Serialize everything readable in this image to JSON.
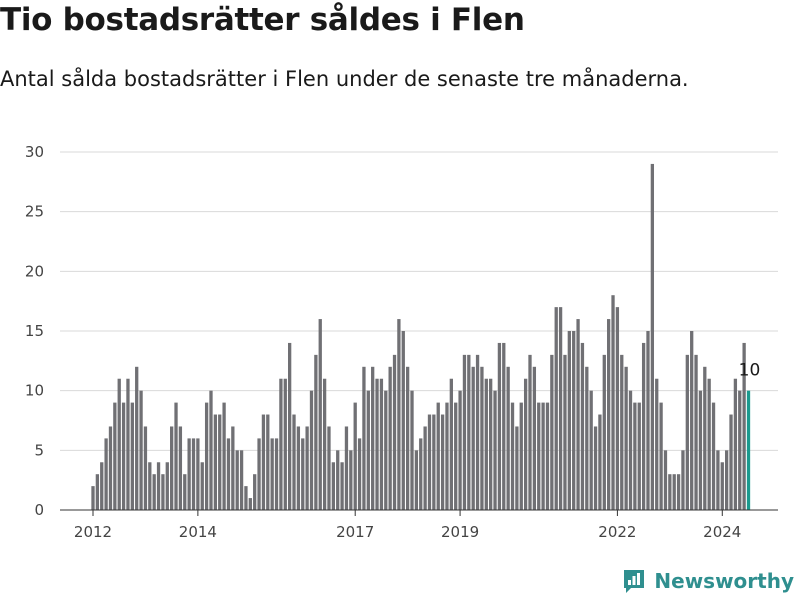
{
  "title": "Tio bostadsrätter såldes i Flen",
  "subtitle": "Antal sålda bostadsrätter i Flen under de senaste tre månaderna.",
  "brand": {
    "name": "Newsworthy",
    "color": "#2f8f8f"
  },
  "colors": {
    "bar": "#707074",
    "highlight": "#1a9a8e",
    "grid": "#d9d9d9"
  },
  "chart_data": {
    "type": "bar",
    "title": "Tio bostadsrätter såldes i Flen",
    "xlabel": "",
    "ylabel": "",
    "ylim": [
      0,
      30
    ],
    "yticks": [
      0,
      5,
      10,
      15,
      20,
      25,
      30
    ],
    "xticks": [
      {
        "label": "2012",
        "year": 2012
      },
      {
        "label": "2014",
        "year": 2014
      },
      {
        "label": "2017",
        "year": 2017
      },
      {
        "label": "2019",
        "year": 2019
      },
      {
        "label": "2022",
        "year": 2022
      },
      {
        "label": "2024",
        "year": 2024
      }
    ],
    "start": "2012-01",
    "values": [
      2,
      3,
      4,
      6,
      7,
      9,
      11,
      9,
      11,
      9,
      12,
      10,
      7,
      4,
      3,
      4,
      3,
      4,
      7,
      9,
      7,
      3,
      6,
      6,
      6,
      4,
      9,
      10,
      8,
      8,
      9,
      6,
      7,
      5,
      5,
      2,
      1,
      3,
      6,
      8,
      8,
      6,
      6,
      11,
      11,
      14,
      8,
      7,
      6,
      7,
      10,
      13,
      16,
      11,
      7,
      4,
      5,
      4,
      7,
      5,
      9,
      6,
      12,
      10,
      12,
      11,
      11,
      10,
      12,
      13,
      16,
      15,
      12,
      10,
      5,
      6,
      7,
      8,
      8,
      9,
      8,
      9,
      11,
      9,
      10,
      13,
      13,
      12,
      13,
      12,
      11,
      11,
      10,
      14,
      14,
      12,
      9,
      7,
      9,
      11,
      13,
      12,
      9,
      9,
      9,
      13,
      17,
      17,
      13,
      15,
      15,
      16,
      14,
      12,
      10,
      7,
      8,
      13,
      16,
      18,
      17,
      13,
      12,
      10,
      9,
      9,
      14,
      15,
      29,
      11,
      9,
      5,
      3,
      3,
      3,
      5,
      13,
      15,
      13,
      10,
      12,
      11,
      9,
      5,
      4,
      5,
      8,
      11,
      10,
      14,
      10
    ],
    "highlight_index": 150,
    "highlight_label": "10"
  }
}
